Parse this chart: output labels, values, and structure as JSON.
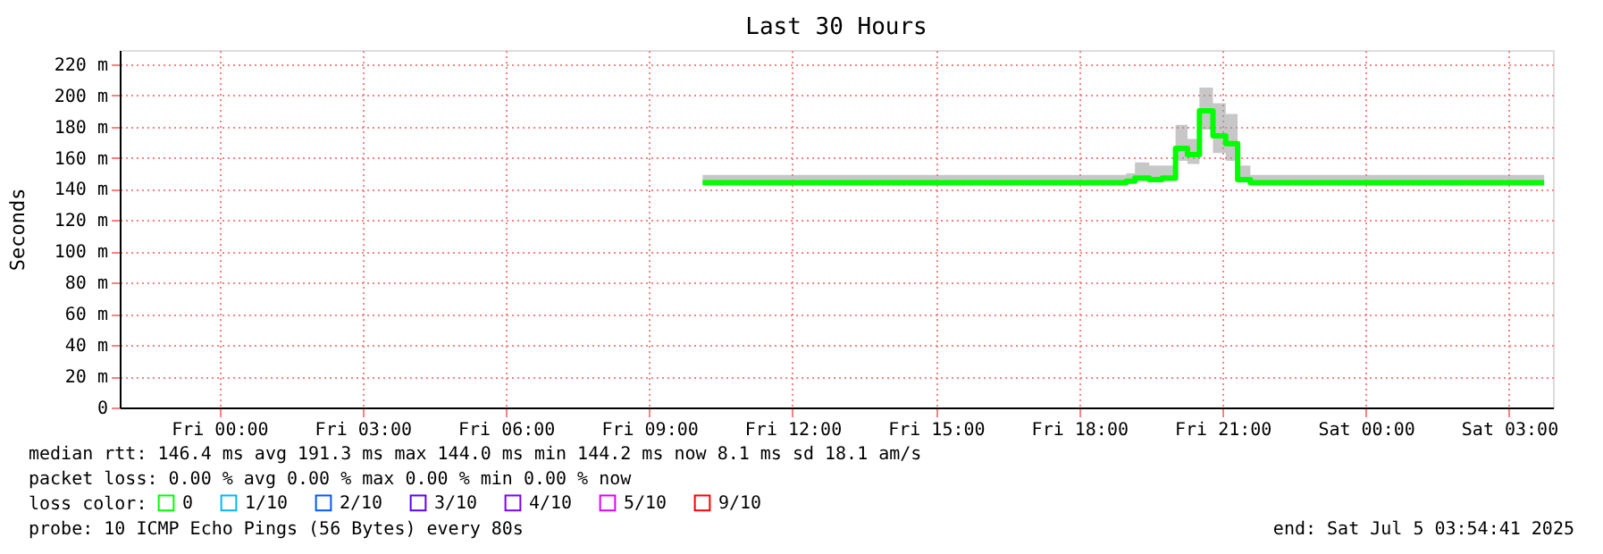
{
  "chart_data": {
    "type": "step",
    "title": "Last 30 Hours",
    "ylabel": "Seconds",
    "legend_title": "loss color:",
    "x": [
      "2025-07-04T10:07",
      "2025-07-04T18:59",
      "2025-07-04T19:10",
      "2025-07-04T19:28",
      "2025-07-04T19:44",
      "2025-07-04T20:01",
      "2025-07-04T20:16",
      "2025-07-04T20:31",
      "2025-07-04T20:48",
      "2025-07-04T21:04",
      "2025-07-04T21:19",
      "2025-07-04T21:35",
      "2025-07-05T03:44"
    ],
    "series": [
      {
        "name": "0",
        "color": "#00ff00",
        "values": [
          144,
          145,
          147,
          146,
          147,
          166,
          162,
          190,
          174,
          169,
          146,
          144,
          144
        ],
        "lower": [
          144,
          144,
          145,
          145,
          145,
          158,
          156,
          178,
          163,
          158,
          144,
          144,
          144
        ],
        "upper": [
          149,
          150,
          157,
          155,
          155,
          181,
          172,
          205,
          195,
          188,
          155,
          149,
          149
        ]
      },
      {
        "name": "1/10",
        "color": "#00b8ff",
        "values": [
          null,
          null,
          null,
          null,
          null,
          null,
          null,
          null,
          null,
          null,
          null,
          null,
          null
        ]
      },
      {
        "name": "2/10",
        "color": "#0059ff",
        "values": [
          null,
          null,
          null,
          null,
          null,
          null,
          null,
          null,
          null,
          null,
          null,
          null,
          null
        ]
      },
      {
        "name": "3/10",
        "color": "#5e00ff",
        "values": [
          null,
          null,
          null,
          null,
          null,
          null,
          null,
          null,
          null,
          null,
          null,
          null,
          null
        ]
      },
      {
        "name": "4/10",
        "color": "#7e00ff",
        "values": [
          null,
          null,
          null,
          null,
          null,
          null,
          null,
          null,
          null,
          null,
          null,
          null,
          null
        ]
      },
      {
        "name": "5/10",
        "color": "#dd00ff",
        "values": [
          null,
          null,
          null,
          null,
          null,
          null,
          null,
          null,
          null,
          null,
          null,
          null,
          null
        ]
      },
      {
        "name": "9/10",
        "color": "#ff0000",
        "values": [
          null,
          null,
          null,
          null,
          null,
          null,
          null,
          null,
          null,
          null,
          null,
          null,
          null
        ]
      }
    ],
    "xlim": [
      "2025-07-03T21:55",
      "2025-07-05T03:55"
    ],
    "xticks": [
      {
        "value": "2025-07-04T00:00",
        "label": "Fri 00:00"
      },
      {
        "value": "2025-07-04T03:00",
        "label": "Fri 03:00"
      },
      {
        "value": "2025-07-04T06:00",
        "label": "Fri 06:00"
      },
      {
        "value": "2025-07-04T09:00",
        "label": "Fri 09:00"
      },
      {
        "value": "2025-07-04T12:00",
        "label": "Fri 12:00"
      },
      {
        "value": "2025-07-04T15:00",
        "label": "Fri 15:00"
      },
      {
        "value": "2025-07-04T18:00",
        "label": "Fri 18:00"
      },
      {
        "value": "2025-07-04T21:00",
        "label": "Fri 21:00"
      },
      {
        "value": "2025-07-05T00:00",
        "label": "Sat 00:00"
      },
      {
        "value": "2025-07-05T03:00",
        "label": "Sat 03:00"
      }
    ],
    "ylim": [
      0,
      229
    ],
    "yticks": [
      0,
      {
        "value": 20,
        "label": "20 m"
      },
      {
        "value": 40,
        "label": "40 m"
      },
      {
        "value": 60,
        "label": "60 m"
      },
      {
        "value": 80,
        "label": "80 m"
      },
      {
        "value": 100,
        "label": "100 m"
      },
      {
        "value": 120,
        "label": "120 m"
      },
      {
        "value": 140,
        "label": "140 m"
      },
      {
        "value": 160,
        "label": "160 m"
      },
      {
        "value": 180,
        "label": "180 m"
      },
      {
        "value": 200,
        "label": "200 m"
      },
      {
        "value": 220,
        "label": "220 m"
      }
    ],
    "grid": true,
    "legend": "bottom",
    "annotations": [
      "median rtt:  146.4 ms avg  191.3 ms max  144.0 ms min  144.2 ms now  8.1 ms sd  18.1   am/s",
      "packet loss: 0.00 % avg  0.00 % max  0.00 % min  0.00 % now",
      "probe:       10 ICMP Echo Pings (56 Bytes) every 80s",
      "end: Sat Jul  5 03:54:41 2025"
    ]
  }
}
